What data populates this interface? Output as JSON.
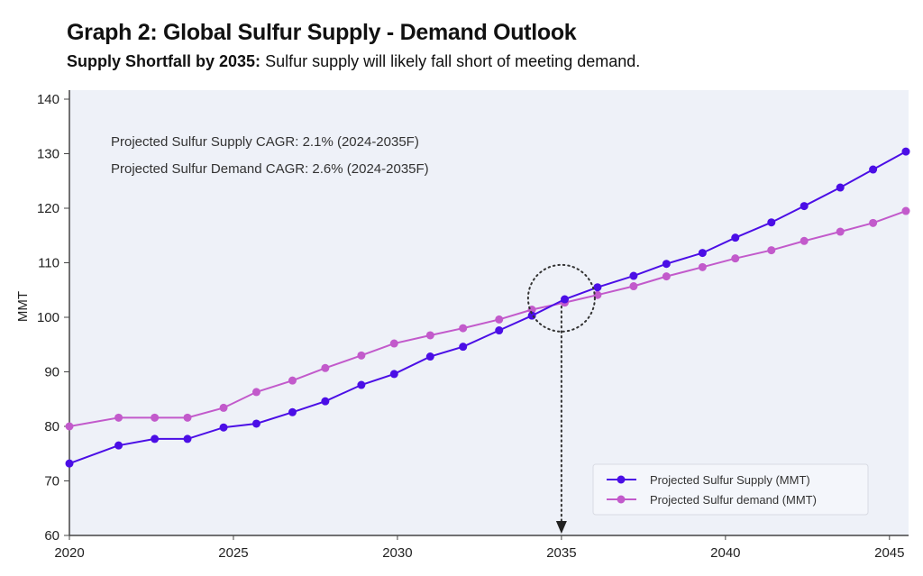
{
  "title": "Graph 2: Global Sulfur Supply - Demand Outlook",
  "subtitle_bold": "Supply Shortfall by 2035:",
  "subtitle_rest": " Sulfur supply will likely fall short of meeting demand.",
  "chart_data": {
    "type": "line",
    "ylabel": "MMT",
    "xlabel": "",
    "ylim": [
      60,
      140
    ],
    "xlim": [
      2020,
      2045.5
    ],
    "yticks": [
      60,
      70,
      80,
      90,
      100,
      110,
      120,
      130,
      140
    ],
    "xticks": [
      2020,
      2025,
      2030,
      2035,
      2040,
      2045
    ],
    "grid": false,
    "legend_placement": "bottom-right",
    "annotations": [
      "Projected Sulfur Supply CAGR: 2.1% (2024-2035F)",
      "Projected Sulfur Demand CAGR: 2.6% (2024-2035F)"
    ],
    "highlight": {
      "x": 2035
    },
    "x": [
      2020,
      2021.5,
      2022.6,
      2023.6,
      2024.7,
      2025.7,
      2026.8,
      2027.8,
      2028.9,
      2029.9,
      2031,
      2032,
      2033.1,
      2034.1,
      2035.1,
      2036.1,
      2037.2,
      2038.2,
      2039.3,
      2040.3,
      2041.4,
      2042.4,
      2043.5,
      2044.5,
      2045.5
    ],
    "series": [
      {
        "name": "Projected Sulfur Supply (MMT)",
        "color": "#4b0ee6",
        "values": [
          73.2,
          76.5,
          77.7,
          77.7,
          79.8,
          80.5,
          82.6,
          84.6,
          87.6,
          89.6,
          92.8,
          94.6,
          97.6,
          100.3,
          103.3,
          105.5,
          107.6,
          109.8,
          111.8,
          114.6,
          117.4,
          120.4,
          123.8,
          127.1,
          130.4
        ]
      },
      {
        "name": "Projected Sulfur demand (MMT)",
        "color": "#c25acb",
        "values": [
          80.0,
          81.6,
          81.6,
          81.6,
          83.4,
          86.3,
          88.4,
          90.7,
          93.0,
          95.2,
          96.7,
          98.0,
          99.6,
          101.4,
          102.7,
          104.1,
          105.7,
          107.5,
          109.2,
          110.8,
          112.3,
          114.0,
          115.7,
          117.3,
          119.5
        ]
      }
    ]
  }
}
